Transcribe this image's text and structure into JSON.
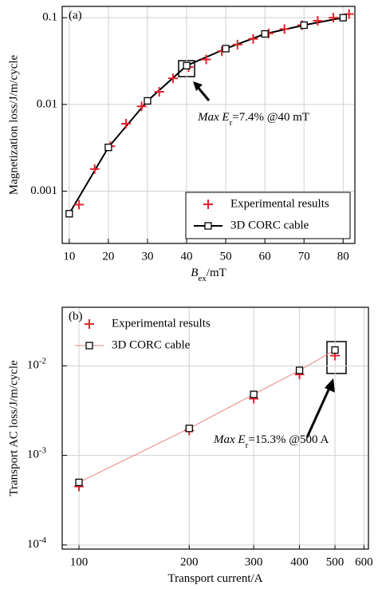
{
  "chart_data": [
    {
      "type": "scatter-line",
      "panel_label": "(a)",
      "x_label": [
        "B",
        "ex",
        "/mT"
      ],
      "y_label": "Magnetization loss/J/m/cycle",
      "annotation": [
        "Max E",
        "r",
        "=7.4% @40 mT"
      ],
      "xlim": [
        8.2,
        83
      ],
      "xticks": [
        10,
        20,
        30,
        40,
        50,
        60,
        70,
        80
      ],
      "ylim": [
        0.00025,
        0.135
      ],
      "yticks": [
        0.001,
        0.01,
        0.1
      ],
      "y_log": true,
      "grid": true,
      "legend": "lower right",
      "series": [
        {
          "name": "Experimental results",
          "color": "#e8202a",
          "marker": "plus",
          "x": [
            12.5,
            16.5,
            20.5,
            24.5,
            28.5,
            33,
            36.5,
            40.5,
            45,
            49,
            53,
            57,
            61,
            65,
            69.5,
            73.5,
            77.5,
            81.5
          ],
          "values": [
            0.0007,
            0.0018,
            0.0033,
            0.006,
            0.0095,
            0.014,
            0.02,
            0.027,
            0.033,
            0.041,
            0.049,
            0.057,
            0.066,
            0.074,
            0.082,
            0.092,
            0.1,
            0.11
          ]
        },
        {
          "name": "3D CORC cable",
          "color": "#000000",
          "marker": "square",
          "marker_color": "#000000",
          "x": [
            10,
            20,
            30,
            40,
            50,
            60,
            70,
            80
          ],
          "values": [
            0.00055,
            0.0032,
            0.011,
            0.028,
            0.044,
            0.065,
            0.082,
            0.1
          ]
        }
      ]
    },
    {
      "type": "scatter-line",
      "panel_label": "(b)",
      "x_label": [
        "Transport current/A"
      ],
      "y_label": "Transport AC loss/J/m/cycle",
      "annotation": [
        "Max E",
        "r",
        "=15.3% @500 A"
      ],
      "xlim": [
        90,
        617
      ],
      "xticks": [
        100,
        200,
        300,
        400,
        500,
        600
      ],
      "x_log": true,
      "ylim": [
        9e-05,
        0.045
      ],
      "y_log": true,
      "yticks": [
        {
          "value": 0.0001,
          "label": "10",
          "exponent": "-4"
        },
        {
          "value": 0.001,
          "label": "10",
          "exponent": "-3"
        },
        {
          "value": 0.01,
          "label": "10",
          "exponent": "-2"
        }
      ],
      "grid": true,
      "legend": "upper left",
      "series": [
        {
          "name": "Experimental results",
          "color": "#e8202a",
          "marker": "plus",
          "x": [
            100,
            200,
            300,
            400,
            500
          ],
          "values": [
            0.00045,
            0.0019,
            0.0043,
            0.008,
            0.013
          ]
        },
        {
          "name": "3D CORC cable",
          "color": "#f08080",
          "marker": "square",
          "marker_color": "#000000",
          "x": [
            100,
            200,
            300,
            400,
            500
          ],
          "values": [
            0.0005,
            0.002,
            0.0048,
            0.0089,
            0.015
          ]
        }
      ]
    }
  ]
}
